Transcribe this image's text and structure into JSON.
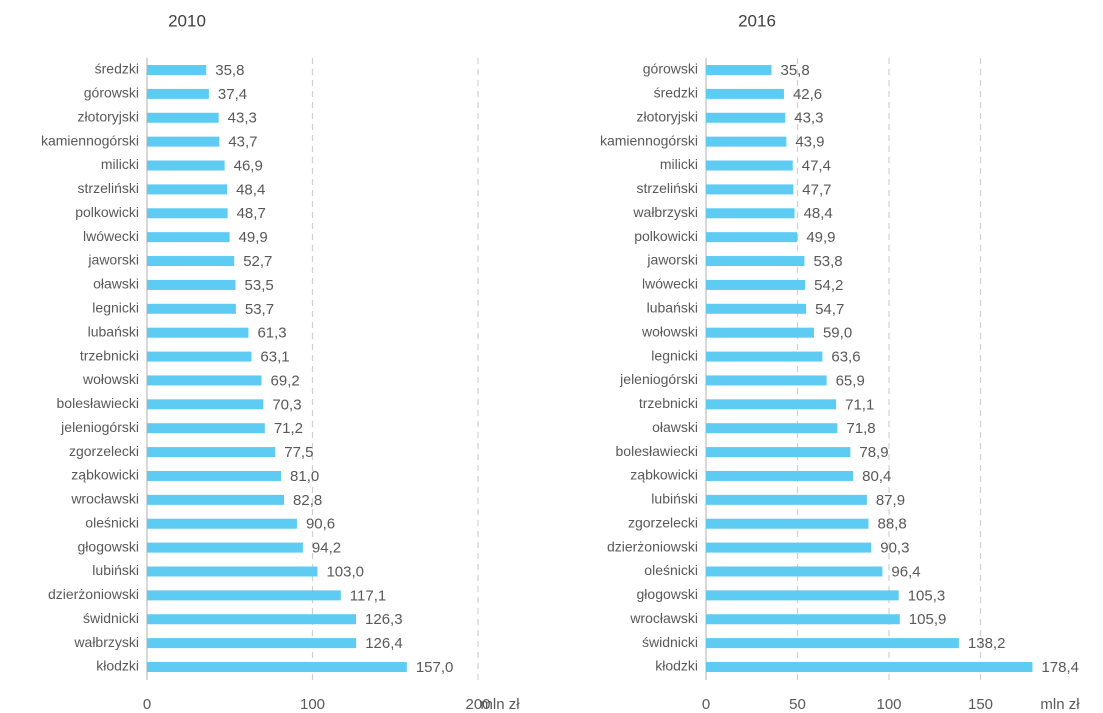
{
  "chart_data": [
    {
      "type": "bar",
      "title": "2010",
      "x_label": "mln zł",
      "color": "#5ecbf2",
      "grid": true,
      "categories": [
        "średzki",
        "górowski",
        "złotoryjski",
        "kamiennogórski",
        "milicki",
        "strzeliński",
        "polkowicki",
        "lwówecki",
        "jaworski",
        "oławski",
        "legnicki",
        "lubański",
        "trzebnicki",
        "wołowski",
        "bolesławiecki",
        "jeleniogórski",
        "zgorzelecki",
        "ząbkowicki",
        "wrocławski",
        "oleśnicki",
        "głogowski",
        "lubiński",
        "dzierżoniowski",
        "świdnicki",
        "wałbrzyski",
        "kłodzki"
      ],
      "values": [
        35.8,
        37.4,
        43.3,
        43.7,
        46.9,
        48.4,
        48.7,
        49.9,
        52.7,
        53.5,
        53.7,
        61.3,
        63.1,
        69.2,
        70.3,
        71.2,
        77.5,
        81.0,
        82.8,
        90.6,
        94.2,
        103.0,
        117.1,
        126.3,
        126.4,
        157.0
      ],
      "value_labels": [
        "35,8",
        "37,4",
        "43,3",
        "43,7",
        "46,9",
        "48,4",
        "48,7",
        "49,9",
        "52,7",
        "53,5",
        "53,7",
        "61,3",
        "63,1",
        "69,2",
        "70,3",
        "71,2",
        "77,5",
        "81,0",
        "82,8",
        "90,6",
        "94,2",
        "103,0",
        "117,1",
        "126,3",
        "126,4",
        "157,0"
      ],
      "xlim": [
        0,
        200
      ],
      "xticks": [
        0,
        100,
        200
      ]
    },
    {
      "type": "bar",
      "title": "2016",
      "x_label": "mln zł",
      "color": "#5ecbf2",
      "grid": true,
      "categories": [
        "górowski",
        "średzki",
        "złotoryjski",
        "kamiennogórski",
        "milicki",
        "strzeliński",
        "wałbrzyski",
        "polkowicki",
        "jaworski",
        "lwówecki",
        "lubański",
        "wołowski",
        "legnicki",
        "jeleniogórski",
        "trzebnicki",
        "oławski",
        "bolesławiecki",
        "ząbkowicki",
        "lubiński",
        "zgorzelecki",
        "dzierżoniowski",
        "oleśnicki",
        "głogowski",
        "wrocławski",
        "świdnicki",
        "kłodzki"
      ],
      "values": [
        35.8,
        42.6,
        43.3,
        43.9,
        47.4,
        47.7,
        48.4,
        49.9,
        53.8,
        54.2,
        54.7,
        59.0,
        63.6,
        65.9,
        71.1,
        71.8,
        78.9,
        80.4,
        87.9,
        88.8,
        90.3,
        96.4,
        105.3,
        105.9,
        138.2,
        178.4
      ],
      "value_labels": [
        "35,8",
        "42,6",
        "43,3",
        "43,9",
        "47,4",
        "47,7",
        "48,4",
        "49,9",
        "53,8",
        "54,2",
        "54,7",
        "59,0",
        "63,6",
        "65,9",
        "71,1",
        "71,8",
        "78,9",
        "80,4",
        "87,9",
        "88,8",
        "90,3",
        "96,4",
        "105,3",
        "105,9",
        "138,2",
        "178,4"
      ],
      "xlim": [
        0,
        200
      ],
      "xticks": [
        0,
        50,
        100,
        150
      ]
    }
  ]
}
